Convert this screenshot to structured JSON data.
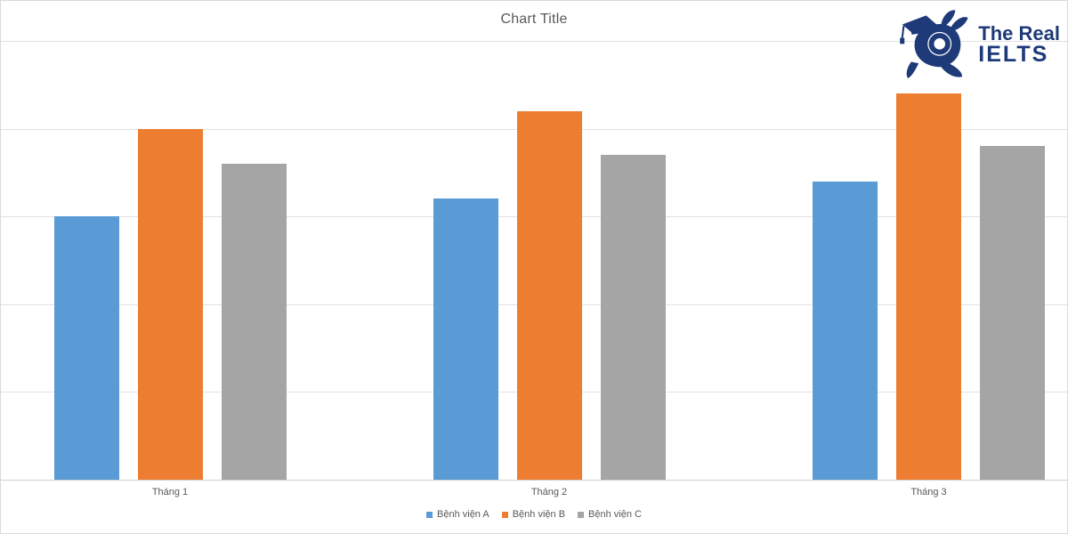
{
  "chart_data": {
    "type": "bar",
    "title": "Chart Title",
    "categories": [
      "Tháng 1",
      "Tháng 2",
      "Tháng 3"
    ],
    "series": [
      {
        "name": "Bệnh viện A",
        "color": "#5B9BD5",
        "values": [
          300,
          320,
          340
        ]
      },
      {
        "name": "Bệnh viện B",
        "color": "#ED7D31",
        "values": [
          400,
          420,
          440
        ]
      },
      {
        "name": "Bệnh viện C",
        "color": "#A5A5A5",
        "values": [
          360,
          370,
          380
        ]
      }
    ],
    "ylim": [
      0,
      500
    ],
    "gridline_step": 100,
    "y_axis_labels_visible": false,
    "grid": true,
    "legend_position": "bottom"
  },
  "colors": {
    "title_text": "#595959",
    "axis_text": "#595959",
    "gridline": "#e2e2e2",
    "axis_line": "#cfcfcf",
    "logo_navy": "#1e3a78"
  },
  "logo": {
    "line1": "The Real",
    "line2": "IELTS"
  }
}
